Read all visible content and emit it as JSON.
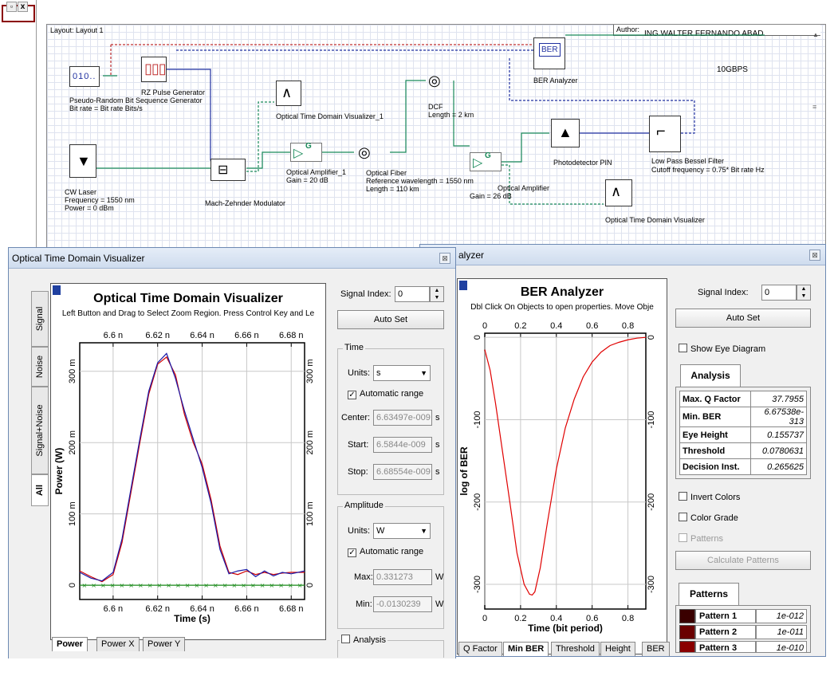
{
  "layout": {
    "title": "Layout: Layout 1",
    "author_label": "Author:",
    "author": "ING.WALTER  FERNANDO ABAD",
    "note": "10GBPS",
    "components": {
      "prbs_name": "Pseudo-Random Bit Sequence Generator",
      "prbs_param": "Bit rate = Bit rate  Bits/s",
      "rz_name": "RZ Pulse Generator",
      "otdv1_name": "Optical Time Domain Visualizer_1",
      "laser_name": "CW Laser",
      "laser_freq": "Frequency = 1550  nm",
      "laser_power": "Power = 0  dBm",
      "mzm_name": "Mach-Zehnder Modulator",
      "amp1_name": "Optical Amplifier_1",
      "amp1_gain": "Gain = 20  dB",
      "fiber_name": "Optical Fiber",
      "fiber_ref": "Reference wavelength = 1550  nm",
      "fiber_len": "Length = 110  km",
      "dcf_name": "DCF",
      "dcf_len": "Length = 2  km",
      "amp2_name": "Optical Amplifier",
      "amp2_gain": "Gain = 26  dB",
      "pd_name": "Photodetector PIN",
      "ber_name": "BER Analyzer",
      "lpf_name": "Low Pass Bessel Filter",
      "lpf_param": "Cutoff frequency = 0.75* Bit rate  Hz",
      "otdv_name": "Optical Time Domain Visualizer",
      "gain_glyph": "G"
    }
  },
  "otdv_window": {
    "title": "Optical Time Domain Visualizer",
    "plot_title": "Optical Time Domain Visualizer",
    "plot_subtitle": "Left Button and Drag to Select Zoom Region. Press Control Key and Le",
    "side_tabs": [
      "All",
      "Signal+Noise",
      "Noise",
      "Signal"
    ],
    "bottom_tabs": [
      "Power",
      "Power X",
      "Power Y"
    ],
    "signal_index_label": "Signal Index:",
    "signal_index": "0",
    "auto_set": "Auto Set",
    "time_group": "Time",
    "units_label": "Units:",
    "time_units": "s",
    "automatic_range": "Automatic range",
    "center_label": "Center:",
    "center": "6.63497e-009",
    "start_label": "Start:",
    "start": "6.5844e-009",
    "stop_label": "Stop:",
    "stop": "6.68554e-009",
    "unit_s": "s",
    "amplitude_group": "Amplitude",
    "amp_units": "W",
    "max_label": "Max:",
    "max": "0.331273",
    "min_label": "Min:",
    "min": "-0.0130239",
    "unit_w": "W",
    "analysis_label": "Analysis"
  },
  "ber_window": {
    "title": "alyzer",
    "plot_title": "BER Analyzer",
    "plot_subtitle": "Dbl Click On Objects to open properties.  Move Obje",
    "bottom_tabs": [
      "Q Factor",
      "Min BER",
      "Threshold",
      "Height",
      "BER"
    ],
    "signal_index_label": "Signal Index:",
    "signal_index": "0",
    "auto_set": "Auto Set",
    "show_eye": "Show Eye Diagram",
    "analysis_tab": "Analysis",
    "analysis": [
      {
        "k": "Max. Q Factor",
        "v": "37.7955"
      },
      {
        "k": "Min. BER",
        "v": "6.67538e-313"
      },
      {
        "k": "Eye Height",
        "v": "0.155737"
      },
      {
        "k": "Threshold",
        "v": "0.0780631"
      },
      {
        "k": "Decision Inst.",
        "v": "0.265625"
      }
    ],
    "invert_colors": "Invert Colors",
    "color_grade": "Color Grade",
    "patterns_chk": "Patterns",
    "calc_patterns": "Calculate Patterns",
    "patterns_tab": "Patterns",
    "patterns": [
      {
        "name": "Pattern 1",
        "value": "1e-012",
        "color": "#3a0000"
      },
      {
        "name": "Pattern 2",
        "value": "1e-011",
        "color": "#6a0000"
      },
      {
        "name": "Pattern 3",
        "value": "1e-010",
        "color": "#8a0000"
      }
    ]
  },
  "chart_data": [
    {
      "type": "line",
      "title": "Optical Time Domain Visualizer",
      "xlabel": "Time (s)",
      "ylabel": "Power (W)",
      "xlim": [
        6.585,
        6.686
      ],
      "ylim": [
        -0.02,
        0.34
      ],
      "xticks": [
        "6.6 n",
        "6.62 n",
        "6.64 n",
        "6.66 n",
        "6.68 n"
      ],
      "xtick_values": [
        6.6,
        6.62,
        6.64,
        6.66,
        6.68
      ],
      "yticks": [
        "0",
        "100 m",
        "200 m",
        "300 m"
      ],
      "ytick_values": [
        0,
        0.1,
        0.2,
        0.3
      ],
      "grid": true,
      "series": [
        {
          "color": "#d00000",
          "x": [
            6.585,
            6.59,
            6.595,
            6.6,
            6.604,
            6.608,
            6.612,
            6.616,
            6.62,
            6.624,
            6.628,
            6.632,
            6.636,
            6.64,
            6.644,
            6.648,
            6.652,
            6.656,
            6.66,
            6.664,
            6.668,
            6.672,
            6.676,
            6.68,
            6.686
          ],
          "y": [
            0.02,
            0.012,
            0.005,
            0.015,
            0.06,
            0.13,
            0.2,
            0.268,
            0.31,
            0.32,
            0.295,
            0.24,
            0.2,
            0.17,
            0.12,
            0.055,
            0.018,
            0.015,
            0.02,
            0.015,
            0.018,
            0.015,
            0.017,
            0.018,
            0.018
          ]
        },
        {
          "color": "#1a1aa8",
          "x": [
            6.585,
            6.59,
            6.595,
            6.6,
            6.604,
            6.608,
            6.612,
            6.616,
            6.62,
            6.624,
            6.628,
            6.632,
            6.636,
            6.64,
            6.644,
            6.648,
            6.652,
            6.656,
            6.66,
            6.664,
            6.668,
            6.672,
            6.676,
            6.68,
            6.686
          ],
          "y": [
            0.018,
            0.01,
            0.006,
            0.018,
            0.065,
            0.135,
            0.205,
            0.272,
            0.312,
            0.325,
            0.29,
            0.245,
            0.205,
            0.165,
            0.115,
            0.05,
            0.016,
            0.02,
            0.022,
            0.012,
            0.02,
            0.013,
            0.018,
            0.016,
            0.02
          ]
        },
        {
          "color": "#1a8a1a",
          "x": [
            6.585,
            6.686
          ],
          "y": [
            0.0,
            0.0
          ]
        }
      ]
    },
    {
      "type": "line",
      "title": "BER Analyzer",
      "xlabel": "Time (bit period)",
      "ylabel": "log of BER",
      "xlim": [
        0,
        0.9
      ],
      "ylim": [
        -330,
        5
      ],
      "xticks": [
        "0",
        "0.2",
        "0.4",
        "0.6",
        "0.8"
      ],
      "xtick_values": [
        0,
        0.2,
        0.4,
        0.6,
        0.8
      ],
      "yticks": [
        "0",
        "-100",
        "-200",
        "-300"
      ],
      "ytick_values": [
        0,
        -100,
        -200,
        -300
      ],
      "grid": true,
      "series": [
        {
          "color": "#e00000",
          "x": [
            0.0,
            0.03,
            0.06,
            0.1,
            0.14,
            0.18,
            0.22,
            0.25,
            0.265,
            0.28,
            0.31,
            0.35,
            0.4,
            0.45,
            0.5,
            0.55,
            0.6,
            0.65,
            0.7,
            0.75,
            0.8,
            0.85,
            0.9
          ],
          "y": [
            -15,
            -40,
            -80,
            -140,
            -200,
            -262,
            -300,
            -312,
            -313,
            -309,
            -280,
            -225,
            -160,
            -110,
            -75,
            -48,
            -30,
            -18,
            -10,
            -6,
            -3,
            -1,
            0
          ]
        }
      ]
    }
  ]
}
